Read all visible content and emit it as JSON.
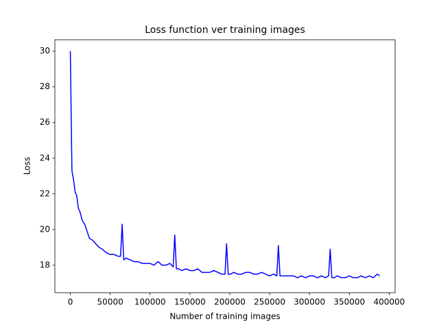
{
  "chart_data": {
    "type": "line",
    "title": "Loss function ver training images",
    "x_label": "Number of training images",
    "y_label": "Loss",
    "xlim": [
      -19400,
      407400
    ],
    "ylim": [
      16.46,
      30.64
    ],
    "xticks": [
      0,
      50000,
      100000,
      150000,
      200000,
      250000,
      300000,
      350000,
      400000
    ],
    "yticks": [
      18,
      20,
      22,
      24,
      26,
      28,
      30
    ],
    "grid": false,
    "x": [
      0,
      2000,
      4000,
      6000,
      8000,
      10000,
      12000,
      15000,
      18000,
      21000,
      24000,
      28000,
      32000,
      36000,
      40000,
      45000,
      50000,
      55000,
      60000,
      63000,
      65000,
      67000,
      70000,
      75000,
      80000,
      85000,
      90000,
      95000,
      100000,
      105000,
      110000,
      115000,
      120000,
      125000,
      129000,
      131000,
      133000,
      136000,
      140000,
      145000,
      150000,
      155000,
      160000,
      165000,
      170000,
      175000,
      180000,
      185000,
      190000,
      194000,
      196000,
      198000,
      201000,
      205000,
      210000,
      215000,
      220000,
      225000,
      230000,
      235000,
      240000,
      245000,
      250000,
      255000,
      259000,
      261000,
      263000,
      266000,
      270000,
      275000,
      280000,
      285000,
      290000,
      295000,
      300000,
      305000,
      310000,
      315000,
      320000,
      324000,
      326000,
      328000,
      331000,
      335000,
      340000,
      345000,
      350000,
      355000,
      360000,
      365000,
      370000,
      375000,
      380000,
      385000,
      388000
    ],
    "series": [
      {
        "name": "Loss",
        "color": "#0000ff",
        "values": [
          30,
          23.3,
          22.8,
          22.1,
          21.9,
          21.2,
          21.0,
          20.5,
          20.3,
          19.9,
          19.5,
          19.4,
          19.2,
          19.0,
          18.9,
          18.7,
          18.6,
          18.6,
          18.5,
          18.5,
          20.3,
          18.3,
          18.4,
          18.3,
          18.2,
          18.2,
          18.1,
          18.1,
          18.1,
          18.0,
          18.2,
          18.0,
          18.0,
          18.1,
          17.9,
          19.7,
          17.8,
          17.8,
          17.7,
          17.8,
          17.7,
          17.7,
          17.8,
          17.6,
          17.6,
          17.6,
          17.7,
          17.6,
          17.5,
          17.5,
          19.2,
          17.5,
          17.5,
          17.6,
          17.5,
          17.5,
          17.6,
          17.6,
          17.5,
          17.5,
          17.6,
          17.5,
          17.4,
          17.5,
          17.4,
          19.1,
          17.4,
          17.4,
          17.4,
          17.4,
          17.4,
          17.3,
          17.4,
          17.3,
          17.4,
          17.4,
          17.3,
          17.4,
          17.3,
          17.4,
          18.9,
          17.3,
          17.3,
          17.4,
          17.3,
          17.3,
          17.4,
          17.3,
          17.3,
          17.4,
          17.3,
          17.4,
          17.3,
          17.5,
          17.4
        ]
      }
    ]
  }
}
